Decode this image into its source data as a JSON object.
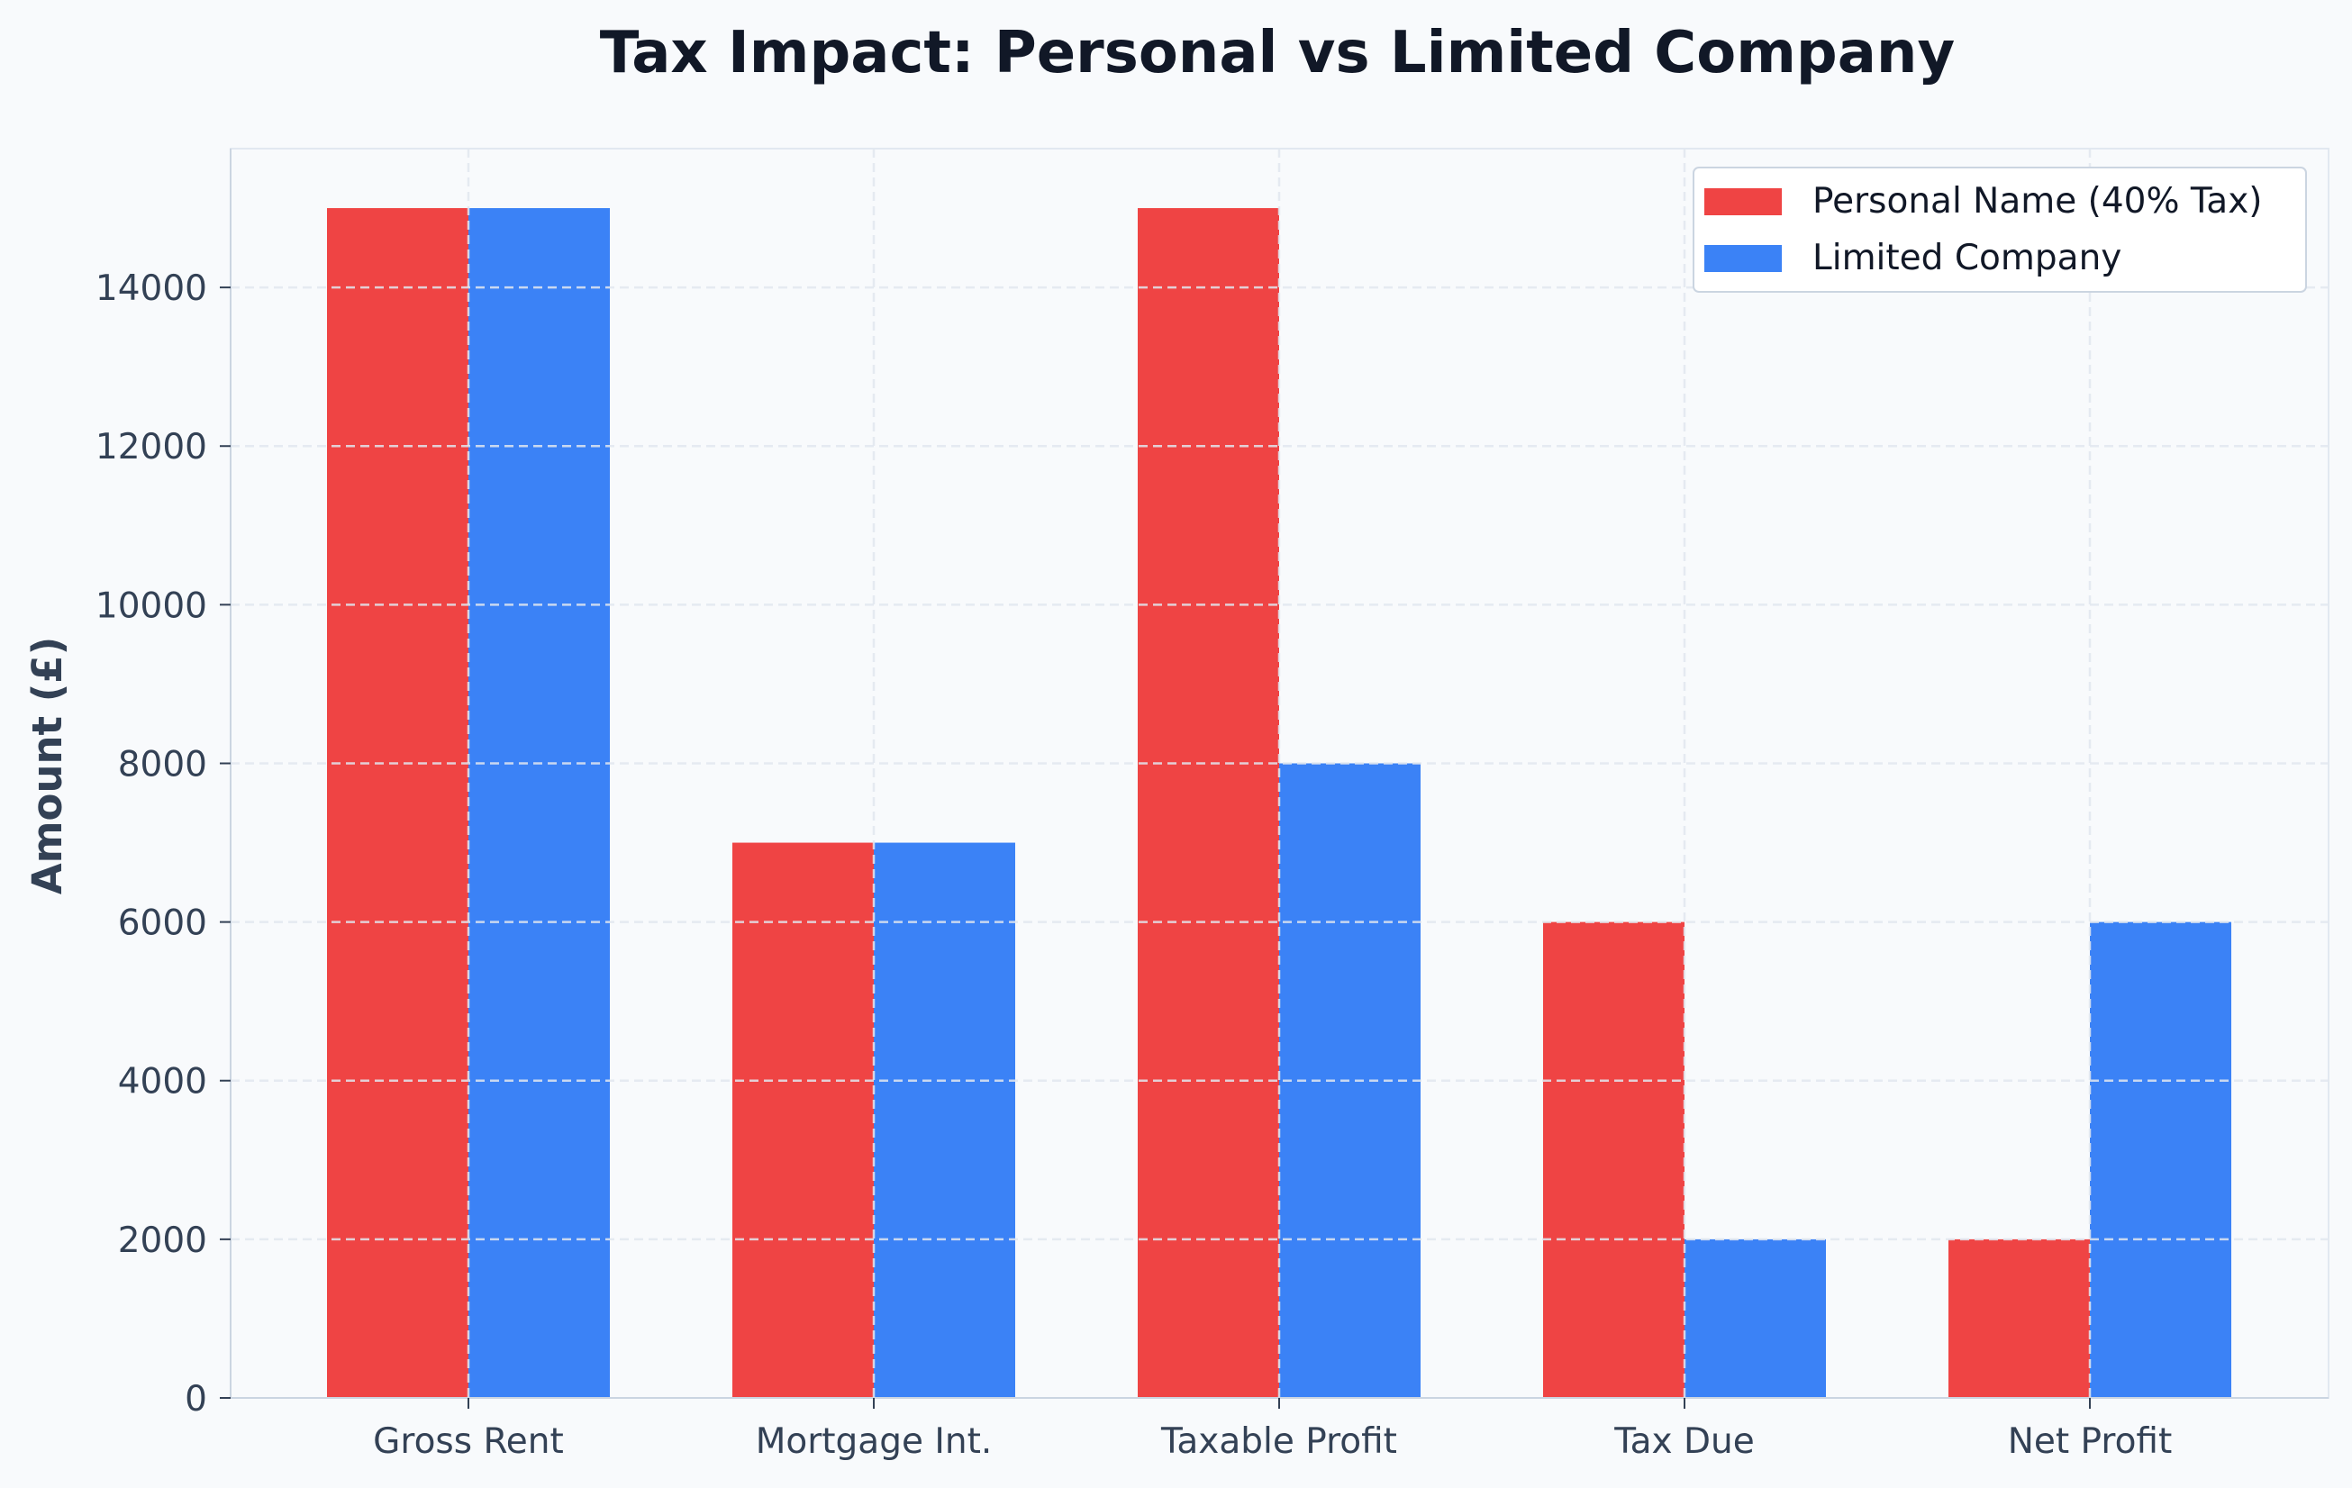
{
  "chart_data": {
    "type": "bar",
    "title": "Tax Impact: Personal vs Limited Company",
    "xlabel": "",
    "ylabel": "Amount (£)",
    "categories": [
      "Gross Rent",
      "Mortgage Int.",
      "Taxable Profit",
      "Tax Due",
      "Net Profit"
    ],
    "series": [
      {
        "name": "Personal Name (40% Tax)",
        "color": "#ef4444",
        "values": [
          15000,
          7000,
          15000,
          6000,
          2000
        ]
      },
      {
        "name": "Limited Company",
        "color": "#3b82f6",
        "values": [
          15000,
          7000,
          8000,
          2000,
          6000
        ]
      }
    ],
    "ylim": [
      0,
      15750
    ],
    "yticks": [
      0,
      2000,
      4000,
      6000,
      8000,
      10000,
      12000,
      14000
    ],
    "grid": true,
    "legend_position": "top-right"
  }
}
